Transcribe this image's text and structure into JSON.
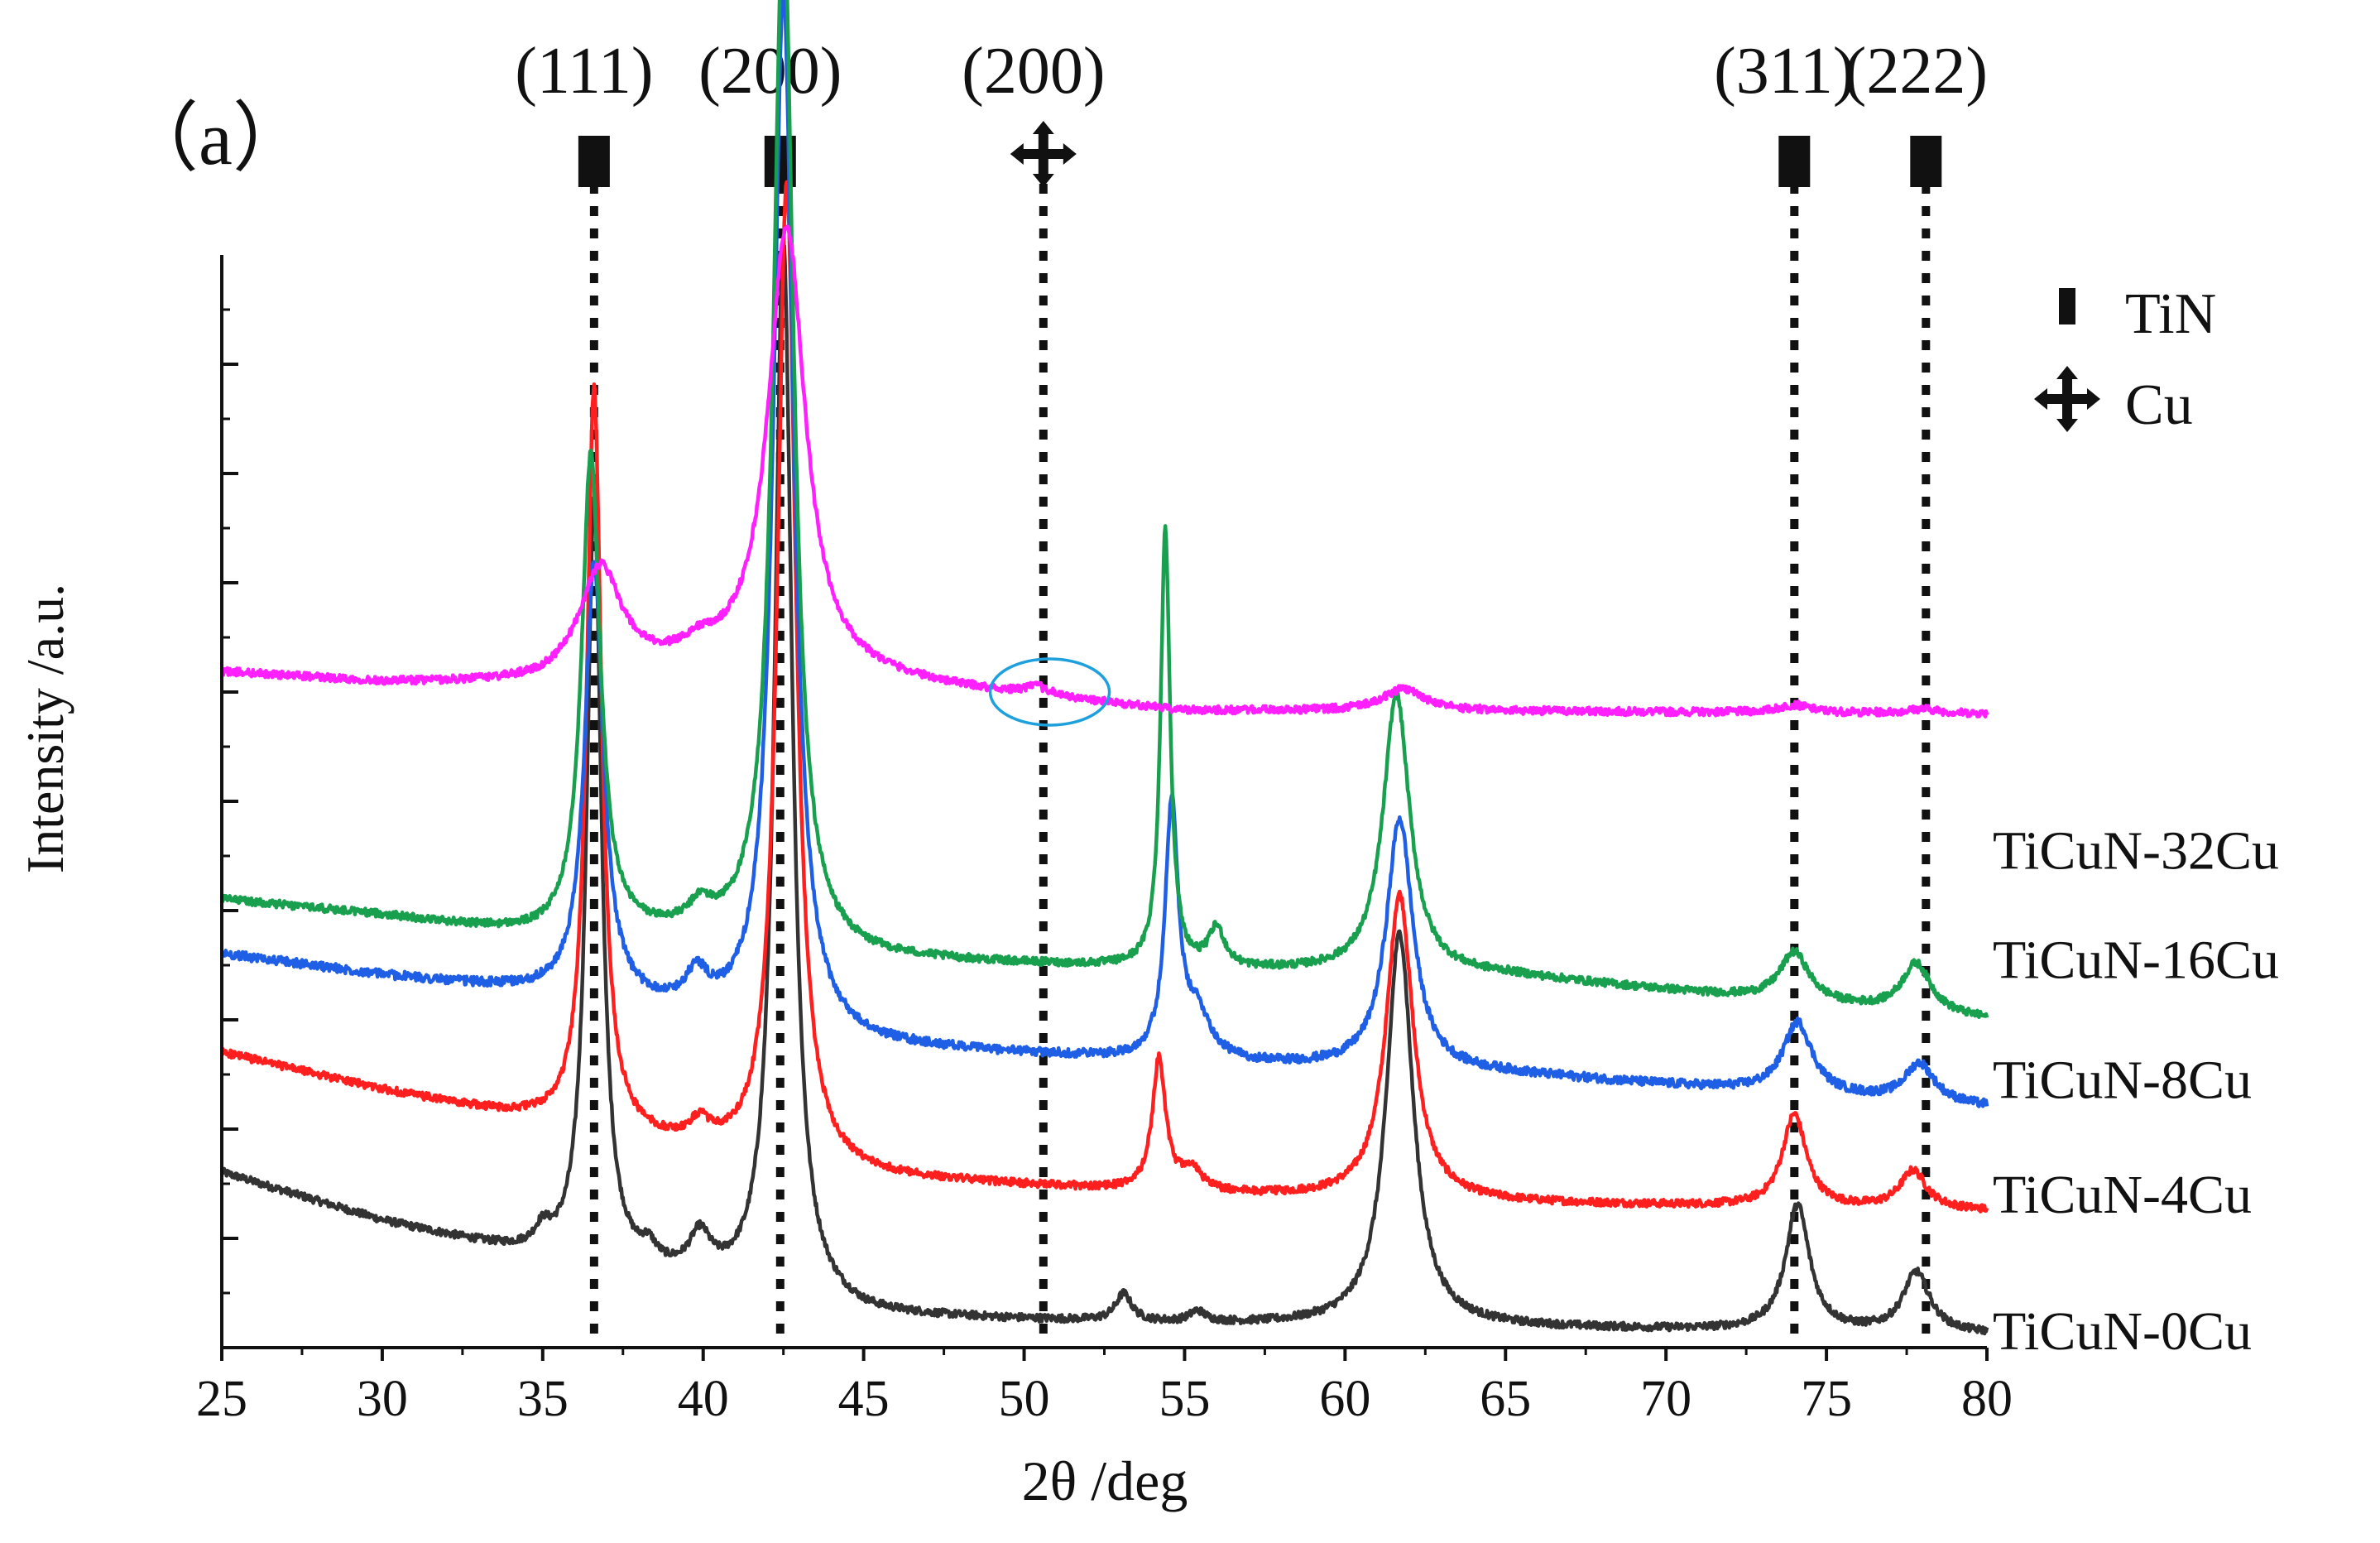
{
  "panel_label": "（a）",
  "chart_data": {
    "type": "line",
    "title": "",
    "xlabel": "2θ /deg",
    "ylabel": "Intensity /a.u.",
    "xlim": [
      25,
      80
    ],
    "ylim": [
      0,
      100
    ],
    "x_ticks": [
      25,
      30,
      35,
      40,
      45,
      50,
      55,
      60,
      65,
      70,
      75,
      80
    ],
    "y_tick_labels_shown": false,
    "legend": {
      "position": "top-right",
      "entries": [
        {
          "label": "TiN",
          "marker": "filled-rectangle"
        },
        {
          "label": "Cu",
          "marker": "four-way-arrow"
        }
      ]
    },
    "reference_lines": [
      {
        "x": 36.6,
        "label": "(111)",
        "phase": "TiN"
      },
      {
        "x": 42.4,
        "label": "(200)",
        "phase": "TiN"
      },
      {
        "x": 50.6,
        "label": "(200)",
        "phase": "Cu"
      },
      {
        "x": 74.0,
        "label": "(311)",
        "phase": "TiN"
      },
      {
        "x": 78.1,
        "label": "(222)",
        "phase": "TiN"
      }
    ],
    "annotations": [
      {
        "type": "ellipse",
        "x": 50.8,
        "y": 60.0,
        "note": "weak Cu (200) reflection in TiCuN-32Cu"
      }
    ],
    "series": [
      {
        "name": "TiCuN-0Cu",
        "color": "#333333",
        "noise": 0.35,
        "label_y": 1.5,
        "baseline": [
          [
            25,
            16.0
          ],
          [
            30,
            11.5
          ],
          [
            35,
            8.0
          ],
          [
            40,
            5.5
          ],
          [
            45,
            2.8
          ],
          [
            55,
            2.1
          ],
          [
            65,
            1.8
          ],
          [
            80,
            1.2
          ]
        ],
        "peaks": [
          {
            "x": 35.0,
            "h": 1.8,
            "w": 0.3
          },
          {
            "x": 36.6,
            "h": 70.0,
            "w": 0.28
          },
          {
            "x": 38.3,
            "h": 1.5,
            "w": 0.3
          },
          {
            "x": 39.9,
            "h": 3.6,
            "w": 0.4
          },
          {
            "x": 42.5,
            "h": 97.0,
            "w": 0.33
          },
          {
            "x": 53.1,
            "h": 2.5,
            "w": 0.3
          },
          {
            "x": 55.4,
            "h": 1.0,
            "w": 0.3
          },
          {
            "x": 61.7,
            "h": 36.0,
            "w": 0.5
          },
          {
            "x": 74.1,
            "h": 11.5,
            "w": 0.45
          },
          {
            "x": 77.8,
            "h": 5.5,
            "w": 0.5
          }
        ]
      },
      {
        "name": "TiCuN-4Cu",
        "color": "#ff1f1f",
        "noise": 0.35,
        "label_y": 14.0,
        "baseline": [
          [
            25,
            27.0
          ],
          [
            30,
            23.5
          ],
          [
            35,
            20.5
          ],
          [
            40,
            17.5
          ],
          [
            45,
            15.5
          ],
          [
            55,
            14.0
          ],
          [
            65,
            13.2
          ],
          [
            80,
            12.5
          ]
        ],
        "peaks": [
          {
            "x": 36.6,
            "h": 68.0,
            "w": 0.28
          },
          {
            "x": 39.9,
            "h": 2.0,
            "w": 0.4
          },
          {
            "x": 42.6,
            "h": 90.0,
            "w": 0.35
          },
          {
            "x": 54.2,
            "h": 12.0,
            "w": 0.25
          },
          {
            "x": 55.2,
            "h": 2.0,
            "w": 0.4
          },
          {
            "x": 61.7,
            "h": 28.0,
            "w": 0.5
          },
          {
            "x": 74.0,
            "h": 8.5,
            "w": 0.45
          },
          {
            "x": 77.7,
            "h": 3.5,
            "w": 0.5
          }
        ]
      },
      {
        "name": "TiCuN-8Cu",
        "color": "#1f5fe6",
        "noise": 0.4,
        "label_y": 24.5,
        "baseline": [
          [
            25,
            36.0
          ],
          [
            30,
            34.0
          ],
          [
            35,
            32.3
          ],
          [
            40,
            30.0
          ],
          [
            45,
            27.5
          ],
          [
            55,
            26.0
          ],
          [
            65,
            25.0
          ],
          [
            80,
            22.0
          ]
        ],
        "peaks": [
          {
            "x": 36.6,
            "h": 40.0,
            "w": 0.35
          },
          {
            "x": 39.8,
            "h": 3.0,
            "w": 0.4
          },
          {
            "x": 42.5,
            "h": 95.0,
            "w": 0.38
          },
          {
            "x": 54.6,
            "h": 23.0,
            "w": 0.25
          },
          {
            "x": 55.4,
            "h": 4.0,
            "w": 0.5
          },
          {
            "x": 61.7,
            "h": 23.0,
            "w": 0.5
          },
          {
            "x": 74.1,
            "h": 6.5,
            "w": 0.55
          },
          {
            "x": 77.9,
            "h": 3.5,
            "w": 0.55
          }
        ]
      },
      {
        "name": "TiCuN-16Cu",
        "color": "#19a04f",
        "noise": 0.35,
        "label_y": 35.5,
        "baseline": [
          [
            25,
            41.0
          ],
          [
            30,
            39.5
          ],
          [
            35,
            37.5
          ],
          [
            40,
            37.5
          ],
          [
            45,
            35.5
          ],
          [
            55,
            34.5
          ],
          [
            65,
            34.0
          ],
          [
            80,
            30.0
          ]
        ],
        "peaks": [
          {
            "x": 36.5,
            "h": 44.0,
            "w": 0.35
          },
          {
            "x": 39.9,
            "h": 1.8,
            "w": 0.4
          },
          {
            "x": 42.5,
            "h": 95.0,
            "w": 0.38
          },
          {
            "x": 54.4,
            "h": 40.0,
            "w": 0.18
          },
          {
            "x": 56.0,
            "h": 3.5,
            "w": 0.3
          },
          {
            "x": 61.6,
            "h": 25.5,
            "w": 0.5
          },
          {
            "x": 74.0,
            "h": 4.5,
            "w": 0.55
          },
          {
            "x": 77.8,
            "h": 4.5,
            "w": 0.55
          }
        ]
      },
      {
        "name": "TiCuN-32Cu",
        "color": "#ff1fff",
        "noise": 0.35,
        "label_y": 45.5,
        "baseline": [
          [
            25,
            61.8
          ],
          [
            30,
            60.8
          ],
          [
            35,
            60.6
          ],
          [
            40,
            62.0
          ],
          [
            45,
            61.0
          ],
          [
            50,
            59.5
          ],
          [
            55,
            58.2
          ],
          [
            65,
            58.2
          ],
          [
            80,
            58.0
          ]
        ],
        "peaks": [
          {
            "x": 36.8,
            "h": 10.0,
            "w": 0.8
          },
          {
            "x": 39.8,
            "h": 1.0,
            "w": 0.6
          },
          {
            "x": 42.6,
            "h": 41.0,
            "w": 0.7
          },
          {
            "x": 50.4,
            "h": 0.8,
            "w": 0.5
          },
          {
            "x": 61.8,
            "h": 2.0,
            "w": 0.8
          },
          {
            "x": 74.0,
            "h": 0.7,
            "w": 0.6
          },
          {
            "x": 78.0,
            "h": 0.4,
            "w": 0.6
          }
        ]
      }
    ]
  }
}
